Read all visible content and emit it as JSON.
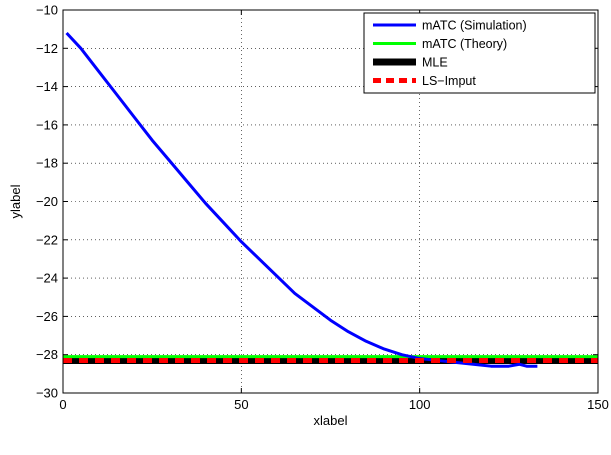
{
  "chart_data": {
    "type": "line",
    "xlabel": "xlabel",
    "ylabel": "ylabel",
    "xlim": [
      0,
      150
    ],
    "ylim": [
      -30,
      -10
    ],
    "xticks": [
      0,
      50,
      100,
      150
    ],
    "yticks": [
      -30,
      -28,
      -26,
      -24,
      -22,
      -20,
      -18,
      -16,
      -14,
      -12,
      -10
    ],
    "grid": true,
    "legend_position": "top-right",
    "series": [
      {
        "name": "mATC (Simulation)",
        "color": "#0000ff",
        "style": "solid",
        "x": [
          1,
          5,
          10,
          15,
          20,
          25,
          30,
          35,
          40,
          45,
          50,
          55,
          60,
          65,
          70,
          75,
          80,
          85,
          90,
          95,
          100,
          105,
          110,
          115,
          120,
          125,
          128,
          130,
          133
        ],
        "y": [
          -11.2,
          -12.0,
          -13.2,
          -14.4,
          -15.6,
          -16.8,
          -17.9,
          -19.0,
          -20.1,
          -21.1,
          -22.1,
          -23.0,
          -23.9,
          -24.8,
          -25.5,
          -26.2,
          -26.8,
          -27.3,
          -27.7,
          -28.0,
          -28.2,
          -28.3,
          -28.4,
          -28.5,
          -28.6,
          -28.6,
          -28.5,
          -28.6,
          -28.6
        ]
      },
      {
        "name": "mATC (Theory)",
        "color": "#00ff00",
        "style": "solid",
        "x": [
          0,
          150
        ],
        "y": [
          -28.1,
          -28.1
        ]
      },
      {
        "name": "MLE",
        "color": "#000000",
        "style": "solid-thick",
        "x": [
          0,
          150
        ],
        "y": [
          -28.3,
          -28.3
        ]
      },
      {
        "name": "LS−Imput",
        "color": "#ff0000",
        "style": "dashed",
        "x": [
          0,
          150
        ],
        "y": [
          -28.3,
          -28.3
        ]
      }
    ]
  }
}
